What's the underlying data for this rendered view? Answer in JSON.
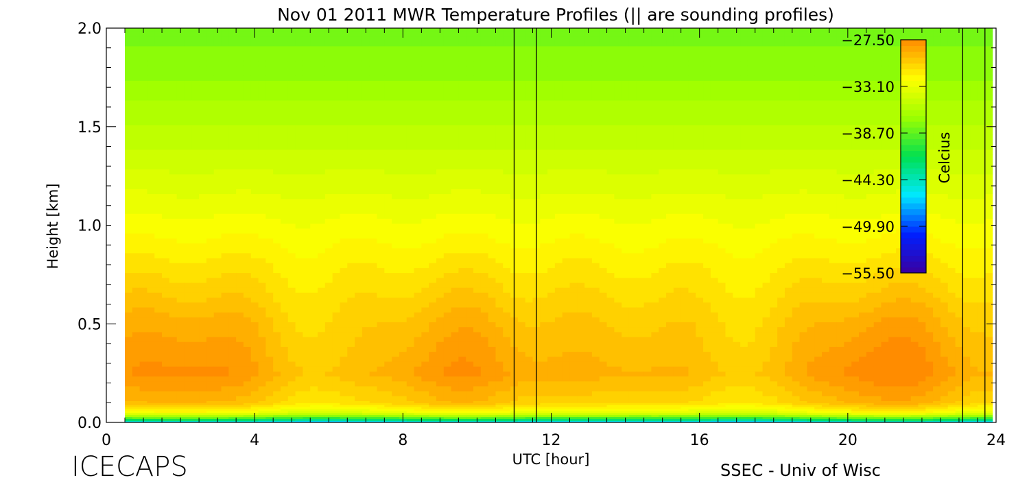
{
  "chart_data": {
    "type": "heatmap",
    "title": "Nov 01 2011 MWR Temperature Profiles (|| are sounding profiles)",
    "xlabel": "UTC [hour]",
    "ylabel": "Height [km]",
    "xlim": [
      0,
      24
    ],
    "ylim": [
      0,
      2.0
    ],
    "x_ticks": [
      "0",
      "4",
      "8",
      "12",
      "16",
      "20",
      "24"
    ],
    "y_ticks": [
      "0.0",
      "0.5",
      "1.0",
      "1.5",
      "2.0"
    ],
    "data_x_range": [
      0.5,
      23.9
    ],
    "colorbar": {
      "label": "Celcius",
      "range": [
        -55.5,
        -27.5
      ],
      "ticks": [
        "-27.50",
        "-33.10",
        "-38.70",
        "-44.30",
        "-49.90",
        "-55.50"
      ],
      "colormap": [
        "#3a00a0",
        "#0020ff",
        "#00e8ff",
        "#00e050",
        "#9cff00",
        "#ffff00",
        "#ff8c00"
      ]
    },
    "sounding_times": [
      11.0,
      11.6,
      23.1,
      23.7
    ],
    "temperature_profile": {
      "heights_km": [
        0.0,
        0.02,
        0.05,
        0.1,
        0.25,
        0.5,
        0.75,
        1.0,
        1.25,
        1.5,
        1.75,
        2.0
      ],
      "typical_celsius": [
        -47,
        -40,
        -33,
        -30,
        -28.5,
        -29.5,
        -31,
        -32.5,
        -34,
        -35.5,
        -37,
        -38
      ]
    }
  },
  "footer": {
    "brand": "ICECAPS",
    "credit": "SSEC - Univ of Wisc"
  }
}
